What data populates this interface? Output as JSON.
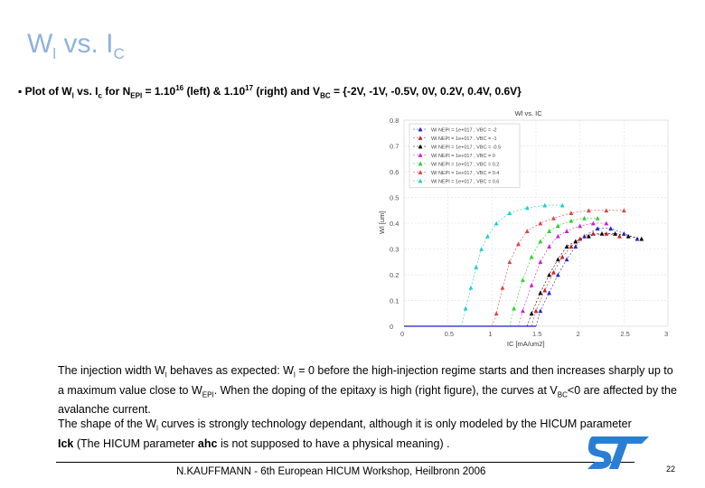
{
  "slide": {
    "title_main": "W",
    "title_sub1": "l",
    "title_mid": " vs. I",
    "title_sub2": "C",
    "bullet_prefix": "▪ Plot of  W",
    "bullet_sub_l": "l",
    "bullet_vs": "  vs.  I",
    "bullet_sub_c": "c",
    "bullet_for": "  for N",
    "bullet_sub_epi": "EPI",
    "bullet_eq": " =  1.10",
    "bullet_sup1": "16",
    "bullet_left": " (left)  &  1.10",
    "bullet_sup2": "17",
    "bullet_right": " (right) and V",
    "bullet_sub_bc": "BC",
    "bullet_values": " = {-2V, -1V, -0.5V, 0V, 0.2V, 0.4V, 0.6V}",
    "para1_a": "The injection width W",
    "para1_sub_l1": "l",
    "para1_b": "  behaves as expected: W",
    "para1_sub_l2": "l",
    "para1_c": " = 0 before the high-injection regime starts and then increases sharply up to a maximum value close to W",
    "para1_sub_epi": "EPI",
    "para1_d": ". When the doping of the epitaxy is high (right figure), the curves at V",
    "para1_sub_bc": "BC",
    "para1_e": "<0 are affected by the avalanche current.",
    "para2_a": "The shape of the W",
    "para2_sub_l": "l",
    "para2_b": " curves is strongly technology dependant, although it is only modeled by the HICUM parameter ",
    "para2_bold1": "Ick",
    "para2_c": " (The HICUM parameter ",
    "para2_bold2": "ahc",
    "para2_d": " is not supposed to have a physical meaning) .",
    "footer": "N.KAUFFMANN - 6th European HICUM Workshop, Heilbronn 2006",
    "page_number": "22",
    "logo_text": "ST"
  },
  "colors": {
    "title": "#8fb2dd",
    "logo": "#2a7fd4"
  },
  "chart_data": {
    "type": "scatter",
    "title": "Wl vs. IC",
    "xlabel": "IC [mA/um2]",
    "ylabel": "Wl [um]",
    "xlim": [
      0,
      3
    ],
    "ylim": [
      0,
      0.8
    ],
    "xticks": [
      "0",
      "0.5",
      "1",
      "1.5",
      "2",
      "2.5",
      "3"
    ],
    "yticks": [
      "0",
      "0.1",
      "0.2",
      "0.3",
      "0.4",
      "0.5",
      "0.6",
      "0.7",
      "0.8"
    ],
    "grid": true,
    "legend_position": "top-left",
    "series": [
      {
        "name": "Wl  NEPI = 1e+017 , VBC = -2",
        "color": "#2222cc",
        "marker": "triangle",
        "x": [
          1.55,
          1.65,
          1.75,
          1.85,
          1.95,
          2.05,
          2.2,
          2.35,
          2.5,
          2.65
        ],
        "y": [
          0.06,
          0.13,
          0.2,
          0.26,
          0.31,
          0.35,
          0.38,
          0.38,
          0.36,
          0.34
        ]
      },
      {
        "name": "Wl  NEPI = 1e+017 , VBC = -1",
        "color": "#cc2222",
        "marker": "triangle",
        "x": [
          1.5,
          1.6,
          1.7,
          1.8,
          1.9,
          2.0,
          2.15,
          2.3,
          2.45
        ],
        "y": [
          0.06,
          0.14,
          0.21,
          0.27,
          0.31,
          0.34,
          0.36,
          0.36,
          0.35
        ]
      },
      {
        "name": "Wl  NEPI = 1e+017 , VBC = -0.5",
        "color": "#000000",
        "marker": "triangle",
        "x": [
          1.45,
          1.55,
          1.65,
          1.75,
          1.85,
          1.95,
          2.1,
          2.25,
          2.4,
          2.55,
          2.7
        ],
        "y": [
          0.05,
          0.13,
          0.2,
          0.26,
          0.31,
          0.33,
          0.35,
          0.36,
          0.36,
          0.35,
          0.34
        ]
      },
      {
        "name": "Wl  NEPI = 1e+017 , VBC = 0",
        "color": "#cc22cc",
        "marker": "triangle",
        "x": [
          1.35,
          1.45,
          1.55,
          1.65,
          1.75,
          1.85,
          2.0,
          2.15,
          2.3
        ],
        "y": [
          0.06,
          0.16,
          0.25,
          0.31,
          0.35,
          0.37,
          0.39,
          0.4,
          0.4
        ]
      },
      {
        "name": "Wl  NEPI = 1e+017 , VBC = 0.2",
        "color": "#33cc33",
        "marker": "triangle",
        "x": [
          1.25,
          1.35,
          1.45,
          1.55,
          1.65,
          1.75,
          1.9,
          2.05,
          2.2
        ],
        "y": [
          0.07,
          0.18,
          0.27,
          0.33,
          0.37,
          0.39,
          0.41,
          0.42,
          0.42
        ]
      },
      {
        "name": "Wl  NEPI = 1e+017 , VBC = 0.4",
        "color": "#dd4444",
        "marker": "triangle",
        "x": [
          1.05,
          1.12,
          1.2,
          1.3,
          1.4,
          1.55,
          1.7,
          1.9,
          2.1,
          2.3,
          2.5
        ],
        "y": [
          0.05,
          0.15,
          0.25,
          0.32,
          0.37,
          0.4,
          0.42,
          0.44,
          0.45,
          0.45,
          0.45
        ]
      },
      {
        "name": "Wl  NEPI = 1e+017 , VBC = 0.6",
        "color": "#22cccc",
        "marker": "triangle",
        "x": [
          0.7,
          0.76,
          0.82,
          0.88,
          0.95,
          1.05,
          1.2,
          1.4,
          1.6,
          1.8
        ],
        "y": [
          0.07,
          0.15,
          0.23,
          0.3,
          0.35,
          0.4,
          0.44,
          0.46,
          0.47,
          0.47
        ]
      }
    ],
    "baseline": {
      "x_start": 0,
      "x_end": 1.5,
      "y": 0
    }
  }
}
